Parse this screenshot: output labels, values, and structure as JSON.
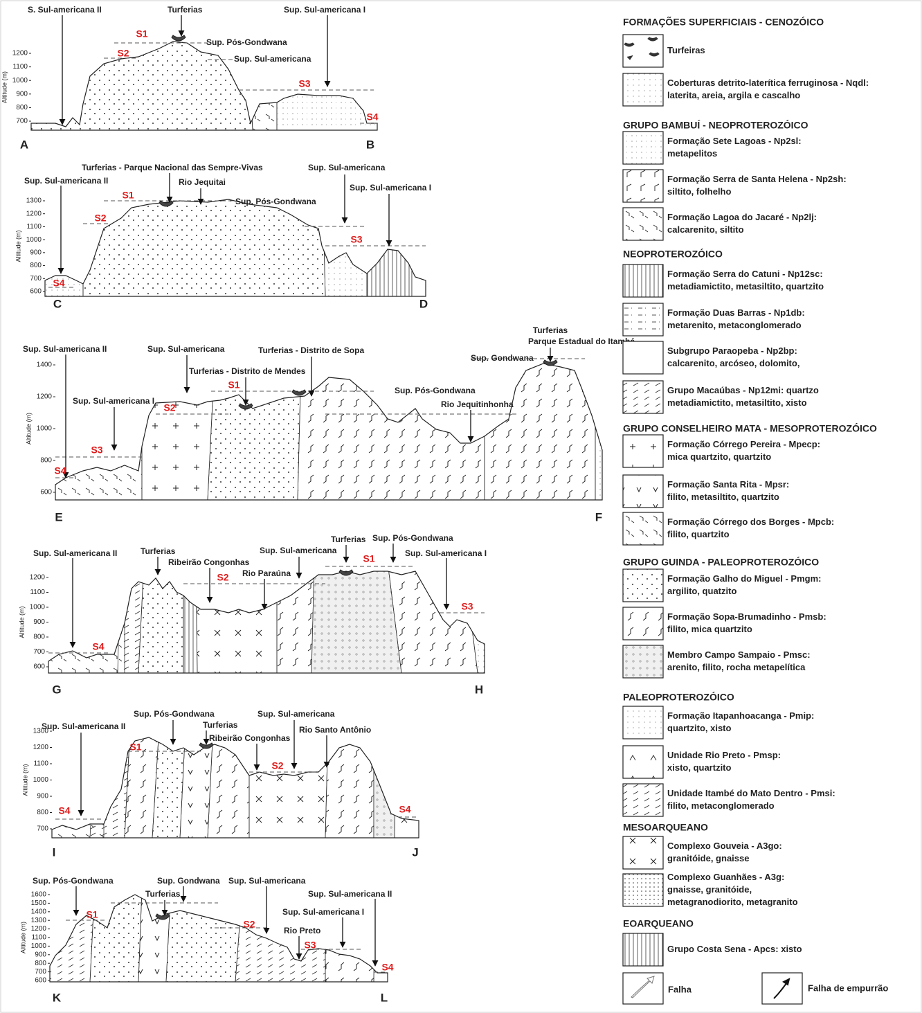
{
  "profiles": [
    {
      "start": "A",
      "end": "B",
      "axis_label": "Altitude (m)",
      "ticks": [
        1200,
        1100,
        1000,
        900,
        800,
        700
      ],
      "labels": [
        "S. Sul-americana II",
        "Turferias",
        "Sup. Sul-americana I",
        "Sup. Pós-Gondwana",
        "Sup. Sul-americana"
      ],
      "surfaces": [
        "S1",
        "S2",
        "S3",
        "S4"
      ]
    },
    {
      "start": "C",
      "end": "D",
      "axis_label": "Altitude (m)",
      "ticks": [
        1300,
        1200,
        1100,
        1000,
        900,
        800,
        700,
        600
      ],
      "labels": [
        "Sup. Sul-americana II",
        "Turferias - Parque Nacional das Sempre-Vivas",
        "Rio Jequitai",
        "Sup. Sul-americana",
        "Sup. Sul-americana I",
        "Sup. Pós-Gondwana"
      ],
      "surfaces": [
        "S1",
        "S2",
        "S3",
        "S4"
      ]
    },
    {
      "start": "E",
      "end": "F",
      "axis_label": "Altitude (m)",
      "ticks": [
        1400,
        1200,
        1000,
        800,
        600
      ],
      "labels": [
        "Sup. Sul-americana II",
        "Sup. Sul-americana",
        "Turferias - Distrito de Sopa",
        "Turferias",
        "Parque Estadual do Itambé",
        "Sup. Gondwana",
        "Turferias - Distrito de Mendes",
        "Sup. Pós-Gondwana",
        "Rio Jequitinhonha",
        "Sup. Sul-americana I"
      ],
      "surfaces": [
        "S1",
        "S2",
        "S3",
        "S4"
      ]
    },
    {
      "start": "G",
      "end": "H",
      "axis_label": "Altitude (m)",
      "ticks": [
        1200,
        1100,
        1000,
        900,
        800,
        700,
        600
      ],
      "labels": [
        "Sup. Sul-americana II",
        "Turferias",
        "Ribeirão Congonhas",
        "Sup. Sul-americana",
        "Rio Paraúna",
        "Turferias",
        "Sup. Pós-Gondwana",
        "Sup. Sul-americana I"
      ],
      "surfaces": [
        "S1",
        "S2",
        "S3",
        "S4"
      ]
    },
    {
      "start": "I",
      "end": "J",
      "axis_label": "Altitude (m)",
      "ticks": [
        1300,
        1200,
        1100,
        1000,
        900,
        800,
        700
      ],
      "labels": [
        "Sup. Sul-americana II",
        "Sup. Pós-Gondwana",
        "Turferias",
        "Ribeirão Congonhas",
        "Sup. Sul-americana",
        "Rio Santo Antônio"
      ],
      "surfaces": [
        "S1",
        "S2",
        "S4",
        "S4"
      ]
    },
    {
      "start": "K",
      "end": "L",
      "axis_label": "Altitude (m)",
      "ticks": [
        1600,
        1500,
        1400,
        1300,
        1200,
        1100,
        1000,
        900,
        800,
        700,
        600
      ],
      "labels": [
        "Sup. Pós-Gondwana",
        "Sup. Gondwana",
        "Turferias",
        "Sup. Sul-americana",
        "Sup. Sul-americana II",
        "Sup. Sul-americana I",
        "Rio Preto"
      ],
      "surfaces": [
        "S1",
        "S2",
        "S3",
        "S4"
      ]
    }
  ],
  "legend": {
    "groups": [
      {
        "title": "FORMAÇÕES SUPERFICIAIS - CENOZÓICO",
        "items": [
          {
            "name": "Turfeiras"
          },
          {
            "name": "Coberturas detrito-laterítica ferruginosa - Nqdl:",
            "desc": [
              "laterita, areia, argila e cascalho"
            ]
          }
        ]
      },
      {
        "title": "GRUPO BAMBUÍ - NEOPROTEROZÓICO",
        "items": [
          {
            "name": "Formação Sete Lagoas - Np2sl:",
            "desc": [
              "metapelitos"
            ]
          },
          {
            "name": "Formação Serra de Santa Helena - Np2sh:",
            "desc": [
              "siltito, folhelho"
            ]
          },
          {
            "name": "Formação Lagoa do Jacaré - Np2lj:",
            "desc": [
              "calcarenito, siltito"
            ]
          }
        ]
      },
      {
        "title": "NEOPROTEROZÓICO",
        "items": [
          {
            "name": "Formação Serra do Catuni - Np12sc:",
            "desc": [
              "metadiamictito, metasiltito, quartzito"
            ]
          },
          {
            "name": "Formação Duas Barras - Np1db:",
            "desc": [
              "metarenito, metaconglomerado"
            ]
          },
          {
            "name": "Subgrupo Paraopeba - Np2bp:",
            "desc": [
              "calcarenito, arcóseo, dolomito,"
            ]
          },
          {
            "name": "Grupo Macaúbas - Np12mi: quartzo",
            "desc": [
              "metadiamictito, metasiltito, xisto"
            ]
          }
        ]
      },
      {
        "title": "GRUPO CONSELHEIRO MATA - MESOPROTEROZÓICO",
        "items": [
          {
            "name": "Formação Córrego Pereira - Mpecp:",
            "desc": [
              "mica quartzito, quartzito"
            ]
          },
          {
            "name": "Formação Santa Rita - Mpsr:",
            "desc": [
              "filito, metasiltito, quartzito"
            ]
          },
          {
            "name": "Formação Córrego dos Borges - Mpcb:",
            "desc": [
              "filito, quartzito"
            ]
          }
        ]
      },
      {
        "title": "GRUPO GUINDA - PALEOPROTEROZÓICO",
        "items": [
          {
            "name": "Formação Galho do Miguel - Pmgm:",
            "desc": [
              "argilito, quatzito"
            ]
          },
          {
            "name": "Formação Sopa-Brumadinho - Pmsb:",
            "desc": [
              "filito, mica quartzito"
            ]
          },
          {
            "name": "Membro Campo Sampaio - Pmsc:",
            "desc": [
              "arenito, filito, rocha metapelítica"
            ]
          }
        ]
      },
      {
        "title": "PALEOPROTEROZÓICO",
        "items": [
          {
            "name": "Formação Itapanhoacanga - Pmip:",
            "desc": [
              "quartzito, xisto"
            ]
          },
          {
            "name": "Unidade Rio Preto - Pmsp:",
            "desc": [
              "xisto, quartzito"
            ]
          },
          {
            "name": "Unidade Itambé do Mato Dentro - Pmsi:",
            "desc": [
              "filito, metaconglomerado"
            ]
          }
        ]
      },
      {
        "title": "MESOARQUEANO",
        "items": [
          {
            "name": "Complexo Gouveia - A3go:",
            "desc": [
              "granitóide, gnaisse"
            ]
          },
          {
            "name": "Complexo Guanhães - A3g:",
            "desc": [
              "gnaisse, granitóide,",
              "metagranodiorito, metagranito"
            ]
          }
        ]
      },
      {
        "title": "EOARQUEANO",
        "items": [
          {
            "name": "Grupo Costa Sena - Apcs: xisto"
          }
        ]
      }
    ],
    "fault": "Falha",
    "thrust_fault": "Falha de empurrão"
  }
}
